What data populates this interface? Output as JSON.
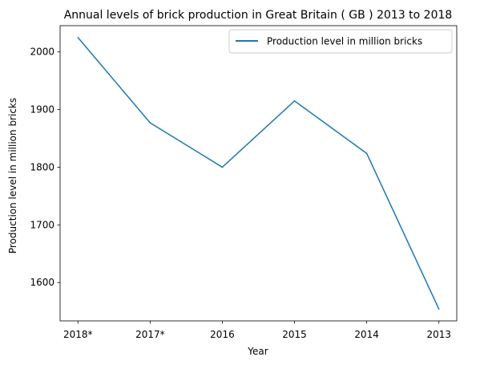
{
  "chart_data": {
    "type": "line",
    "title": "Annual levels of brick production in Great Britain ( GB ) 2013 to 2018",
    "xlabel": "Year",
    "ylabel": "Production level in million bricks",
    "categories": [
      "2018*",
      "2017*",
      "2016",
      "2015",
      "2014",
      "2013"
    ],
    "series": [
      {
        "name": "Production level in million bricks",
        "values": [
          2025,
          1877,
          1800,
          1915,
          1824,
          1554
        ],
        "color": "#1f77b4"
      }
    ],
    "ylim": [
      1533.45,
      2045.55
    ],
    "yticks": [
      1600,
      1700,
      1800,
      1900,
      2000
    ],
    "grid": false,
    "legend": "top-right"
  }
}
